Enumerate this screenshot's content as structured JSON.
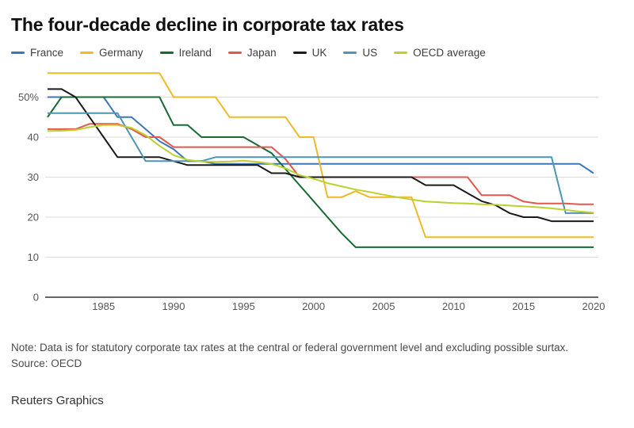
{
  "header": {
    "title": "The four-decade decline in corporate tax rates"
  },
  "chart_data": {
    "type": "line",
    "title": "The four-decade decline in corporate tax rates",
    "xlabel": "",
    "ylabel": "",
    "unit": "%",
    "grid": true,
    "legend_position": "top",
    "xlim": [
      1981,
      2020
    ],
    "ylim": [
      0,
      57
    ],
    "x": [
      1981,
      1982,
      1983,
      1984,
      1985,
      1986,
      1987,
      1988,
      1989,
      1990,
      1991,
      1992,
      1993,
      1994,
      1995,
      1996,
      1997,
      1998,
      1999,
      2000,
      2001,
      2002,
      2003,
      2004,
      2005,
      2006,
      2007,
      2008,
      2009,
      2010,
      2011,
      2012,
      2013,
      2014,
      2015,
      2016,
      2017,
      2018,
      2019,
      2020
    ],
    "xticks": [
      1985,
      1990,
      1995,
      2000,
      2005,
      2010,
      2015,
      2020
    ],
    "yticks": [
      0,
      10,
      20,
      30,
      40,
      50
    ],
    "ytick_labels": [
      "0",
      "10",
      "20",
      "30",
      "40",
      "50%"
    ],
    "series": [
      {
        "name": "France",
        "color": "#3B76B8",
        "values": [
          50,
          50,
          50,
          50,
          50,
          45,
          45,
          42,
          39,
          37,
          34,
          34,
          33.3,
          33.3,
          33.3,
          33.3,
          33.3,
          33.3,
          33.3,
          33.3,
          33.3,
          33.3,
          33.3,
          33.3,
          33.3,
          33.3,
          33.3,
          33.3,
          33.3,
          33.3,
          33.3,
          33.3,
          33.3,
          33.3,
          33.3,
          33.3,
          33.3,
          33.3,
          33.3,
          31
        ]
      },
      {
        "name": "Germany",
        "color": "#EFB929",
        "values": [
          56,
          56,
          56,
          56,
          56,
          56,
          56,
          56,
          56,
          50,
          50,
          50,
          50,
          45,
          45,
          45,
          45,
          45,
          40,
          40,
          25,
          25,
          26.5,
          25,
          25,
          25,
          25,
          15,
          15,
          15,
          15,
          15,
          15,
          15,
          15,
          15,
          15,
          15,
          15,
          15
        ]
      },
      {
        "name": "Ireland",
        "color": "#156B33",
        "values": [
          45,
          50,
          50,
          50,
          50,
          50,
          50,
          50,
          50,
          43,
          43,
          40,
          40,
          40,
          40,
          38,
          36,
          32,
          28,
          24,
          20,
          16,
          12.5,
          12.5,
          12.5,
          12.5,
          12.5,
          12.5,
          12.5,
          12.5,
          12.5,
          12.5,
          12.5,
          12.5,
          12.5,
          12.5,
          12.5,
          12.5,
          12.5,
          12.5
        ]
      },
      {
        "name": "Japan",
        "color": "#E0584E",
        "values": [
          42,
          42,
          42,
          43.3,
          43.3,
          43.3,
          42,
          40,
          40,
          37.5,
          37.5,
          37.5,
          37.5,
          37.5,
          37.5,
          37.5,
          37.5,
          34.5,
          30,
          30,
          30,
          30,
          30,
          30,
          30,
          30,
          30,
          30,
          30,
          30,
          30,
          25.5,
          25.5,
          25.5,
          23.9,
          23.4,
          23.4,
          23.4,
          23.2,
          23.2
        ]
      },
      {
        "name": "UK",
        "color": "#1A1A1A",
        "values": [
          52,
          52,
          50,
          45,
          40,
          35,
          35,
          35,
          35,
          34,
          33,
          33,
          33,
          33,
          33,
          33,
          31,
          31,
          30,
          30,
          30,
          30,
          30,
          30,
          30,
          30,
          30,
          28,
          28,
          28,
          26,
          24,
          23,
          21,
          20,
          20,
          19,
          19,
          19,
          19
        ]
      },
      {
        "name": "US",
        "color": "#4F94B0",
        "values": [
          46,
          46,
          46,
          46,
          46,
          46,
          40,
          34,
          34,
          34,
          34,
          34,
          35,
          35,
          35,
          35,
          35,
          35,
          35,
          35,
          35,
          35,
          35,
          35,
          35,
          35,
          35,
          35,
          35,
          35,
          35,
          35,
          35,
          35,
          35,
          35,
          35,
          21,
          21,
          21
        ]
      },
      {
        "name": "OECD average",
        "color": "#BDD02F",
        "values": [
          41.5,
          41.6,
          41.8,
          42.5,
          43,
          43,
          42.3,
          40.5,
          37.8,
          35.5,
          34.3,
          33.9,
          33.8,
          33.9,
          34.1,
          33.8,
          33.3,
          32.2,
          30.5,
          29.6,
          28.5,
          27.7,
          26.9,
          26.3,
          25.6,
          25,
          24.4,
          23.9,
          23.7,
          23.5,
          23.4,
          23.2,
          23.1,
          22.9,
          22.7,
          22.5,
          22.2,
          21.8,
          21.4,
          21.1
        ]
      }
    ]
  },
  "footer": {
    "note": "Note: Data is for statutory corporate tax rates at the central or federal government level and excluding possible surtax.",
    "source": "Source: OECD",
    "credit": "Reuters Graphics"
  },
  "colors": {
    "gridline": "#DBDBDB",
    "axis": "#333333",
    "tick_label": "#555555"
  }
}
